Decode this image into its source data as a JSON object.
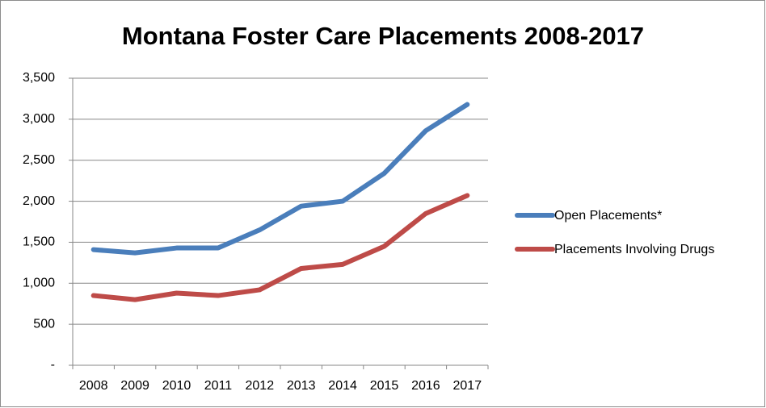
{
  "chart_data": {
    "type": "line",
    "title": "Montana Foster Care Placements 2008-2017",
    "categories": [
      "2008",
      "2009",
      "2010",
      "2011",
      "2012",
      "2013",
      "2014",
      "2015",
      "2016",
      "2017"
    ],
    "series": [
      {
        "name": "Open Placements*",
        "color": "#4a7ebb",
        "values": [
          1410,
          1370,
          1430,
          1430,
          1650,
          1940,
          2000,
          2340,
          2860,
          3180
        ]
      },
      {
        "name": "Placements Involving Drugs",
        "color": "#be4b48",
        "values": [
          850,
          800,
          880,
          850,
          920,
          1180,
          1230,
          1450,
          1850,
          2070
        ]
      }
    ],
    "ylim": [
      0,
      3500
    ],
    "yticks": [
      {
        "value": 0,
        "label": "-"
      },
      500,
      {
        "value": 1000,
        "label": "1,000"
      },
      {
        "value": 1500,
        "label": "1,500"
      },
      {
        "value": 2000,
        "label": "2,000"
      },
      {
        "value": 2500,
        "label": "2,500"
      },
      {
        "value": 3000,
        "label": "3,000"
      },
      {
        "value": 3500,
        "label": "3,500"
      }
    ],
    "grid": true,
    "legend": "right"
  }
}
